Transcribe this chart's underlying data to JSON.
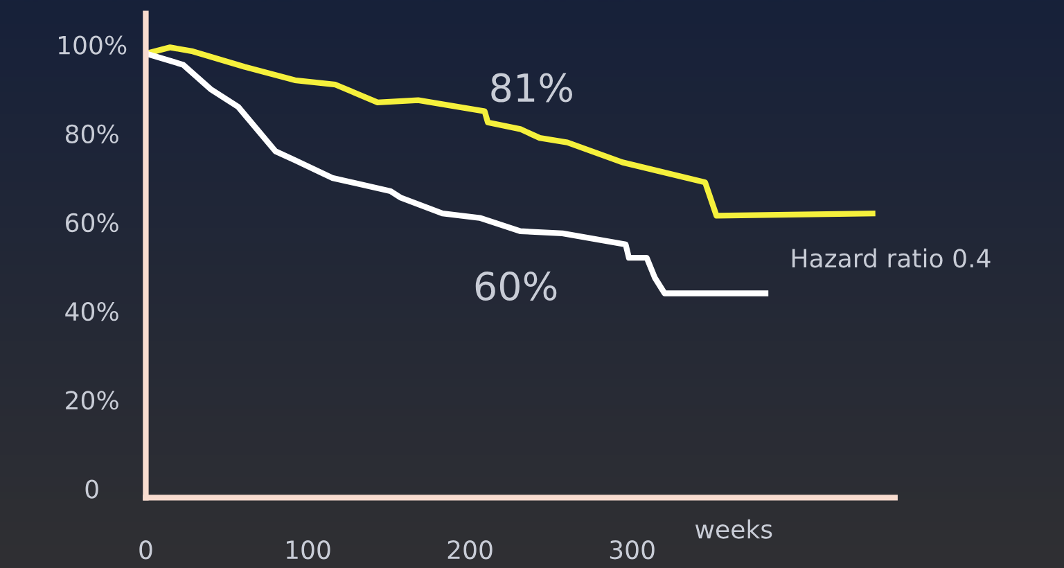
{
  "chart_data": {
    "type": "line",
    "xlabel": "weeks",
    "xlim": [
      0,
      462
    ],
    "ylim": [
      -2,
      107
    ],
    "xticks": [
      0,
      100,
      200,
      300
    ],
    "yticks": [
      0,
      {
        "value": 20,
        "label": "20%"
      },
      {
        "value": 40,
        "label": "40%"
      },
      {
        "value": 60,
        "label": "60%"
      },
      {
        "value": 80,
        "label": "80%"
      },
      {
        "value": 100,
        "label": "100%"
      }
    ],
    "grid": false,
    "marker": "none",
    "line_style": "solid",
    "series": [
      {
        "color": "#f5f03c",
        "x": [
          0,
          15,
          29,
          61,
          92,
          117,
          143,
          168,
          209,
          211,
          231,
          243,
          260,
          294,
          345,
          352,
          450
        ],
        "values": [
          98,
          99.4,
          98.5,
          95,
          92,
          91,
          87,
          87.5,
          85,
          82.5,
          81,
          79,
          78,
          73.5,
          69,
          61.5,
          62
        ]
      },
      {
        "color": "#ffffff",
        "x": [
          0,
          23,
          40,
          57,
          80,
          92,
          115,
          151,
          157,
          183,
          206,
          231,
          257,
          296,
          298,
          309,
          314,
          320,
          384
        ],
        "values": [
          98,
          95.5,
          90,
          86,
          76,
          74,
          70,
          67,
          65.6,
          62,
          61,
          58,
          57.5,
          55,
          52,
          52,
          47.5,
          44,
          44
        ]
      }
    ],
    "annotations": [
      "81%",
      "60%",
      "Hazard ratio 0.4"
    ]
  }
}
